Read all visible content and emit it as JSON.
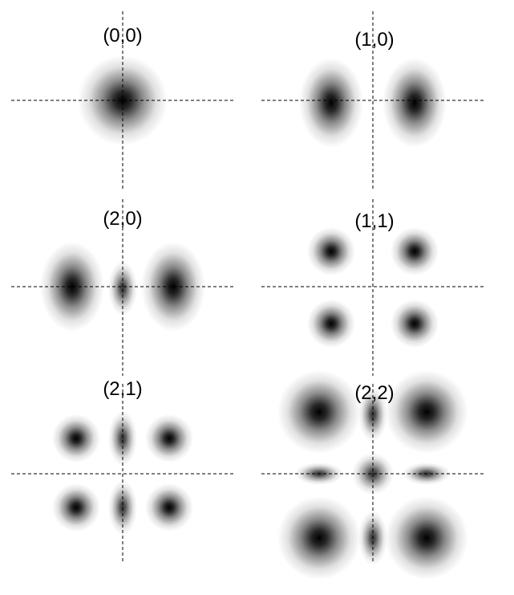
{
  "panels": [
    {
      "label": "(0,0)",
      "lobes": [
        {
          "type": "circle",
          "intensity": 1
        }
      ]
    },
    {
      "label": "(1,0)",
      "lobes": [
        {
          "type": "ellipse-v",
          "intensity": 1
        },
        {
          "type": "ellipse-v",
          "intensity": 1
        }
      ]
    },
    {
      "label": "(2,0)",
      "lobes": [
        {
          "type": "ellipse-v",
          "intensity": 1
        },
        {
          "type": "small-v",
          "intensity": 0.8
        },
        {
          "type": "ellipse-v",
          "intensity": 1
        }
      ]
    },
    {
      "label": "(1,1)",
      "lobes": [
        {
          "type": "circle",
          "intensity": 1
        },
        {
          "type": "circle",
          "intensity": 1
        },
        {
          "type": "circle",
          "intensity": 1
        },
        {
          "type": "circle",
          "intensity": 1
        }
      ]
    },
    {
      "label": "(2,1)",
      "lobes": [
        {
          "type": "circle",
          "intensity": 1
        },
        {
          "type": "small-v",
          "intensity": 0.8
        },
        {
          "type": "circle",
          "intensity": 1
        },
        {
          "type": "circle",
          "intensity": 1
        },
        {
          "type": "small-v",
          "intensity": 0.8
        },
        {
          "type": "circle",
          "intensity": 1
        }
      ]
    },
    {
      "label": "(2,2)",
      "lobes": [
        {
          "type": "circle-lg",
          "intensity": 1
        },
        {
          "type": "small-v",
          "intensity": 0.8
        },
        {
          "type": "circle-lg",
          "intensity": 1
        },
        {
          "type": "small-h",
          "intensity": 0.8
        },
        {
          "type": "small-c",
          "intensity": 0.8
        },
        {
          "type": "small-h",
          "intensity": 0.8
        },
        {
          "type": "circle-lg",
          "intensity": 1
        },
        {
          "type": "small-v",
          "intensity": 0.8
        },
        {
          "type": "circle-lg",
          "intensity": 1
        }
      ]
    }
  ]
}
